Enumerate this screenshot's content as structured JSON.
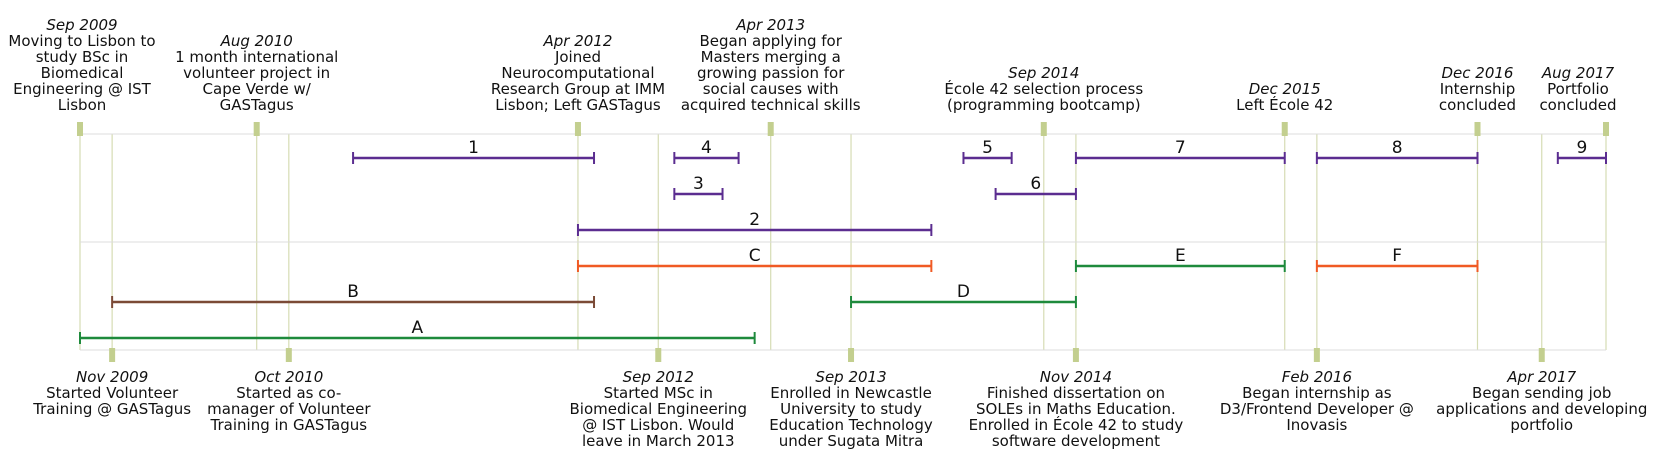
{
  "chart_data": {
    "type": "timeline",
    "axis_range": [
      "2009-09",
      "2017-08"
    ],
    "events_top": [
      {
        "date": "2009-09",
        "date_label": "Sep 2009",
        "text": [
          "Moving to Lisbon to",
          "study BSc in",
          "Biomedical",
          "Engineering @ IST",
          "Lisbon"
        ]
      },
      {
        "date": "2010-08",
        "date_label": "Aug 2010",
        "text": [
          "1 month international",
          "volunteer project in",
          "Cape Verde w/",
          "GASTagus"
        ]
      },
      {
        "date": "2012-04",
        "date_label": "Apr 2012",
        "text": [
          "Joined",
          "Neurocomputational",
          "Research Group at IMM",
          "Lisbon; Left GASTagus"
        ]
      },
      {
        "date": "2013-04",
        "date_label": "Apr 2013",
        "text": [
          "Began applying for",
          "Masters merging a",
          "growing passion for",
          "social causes with",
          "acquired technical skills"
        ]
      },
      {
        "date": "2014-09",
        "date_label": "Sep 2014",
        "text": [
          "École 42 selection process",
          "(programming bootcamp)"
        ]
      },
      {
        "date": "2015-12",
        "date_label": "Dec 2015",
        "text": [
          "Left École 42"
        ]
      },
      {
        "date": "2016-12",
        "date_label": "Dec 2016",
        "text": [
          "Internship",
          "concluded"
        ]
      },
      {
        "date": "2017-08",
        "date_label": "Aug 2017",
        "text": [
          "Portfolio",
          "concluded"
        ]
      }
    ],
    "events_bottom": [
      {
        "date": "2009-11",
        "date_label": "Nov 2009",
        "text": [
          "Started Volunteer",
          "Training @ GASTagus"
        ]
      },
      {
        "date": "2010-10",
        "date_label": "Oct 2010",
        "text": [
          "Started as co-",
          "manager of Volunteer",
          "Training in GASTagus"
        ]
      },
      {
        "date": "2012-09",
        "date_label": "Sep 2012",
        "text": [
          "Started MSc in",
          "Biomedical Engineering",
          "@ IST Lisbon. Would",
          "leave in March 2013"
        ]
      },
      {
        "date": "2013-09",
        "date_label": "Sep 2013",
        "text": [
          "Enrolled in Newcastle",
          "University to study",
          "Education Technology",
          "under Sugata Mitra"
        ]
      },
      {
        "date": "2014-11",
        "date_label": "Nov 2014",
        "text": [
          "Finished dissertation on",
          "SOLEs in Maths Education.",
          "Enrolled in École 42 to study",
          "software development"
        ]
      },
      {
        "date": "2016-02",
        "date_label": "Feb 2016",
        "text": [
          "Began internship as",
          "D3/Frontend Developer @",
          "Inovasis"
        ]
      },
      {
        "date": "2017-04",
        "date_label": "Apr 2017",
        "text": [
          "Began sending job",
          "applications and developing",
          "portfolio"
        ]
      }
    ],
    "spans_top": [
      {
        "label": "1",
        "start": "2011-02",
        "end": "2012-05",
        "row": 0,
        "color": "#5b2d90"
      },
      {
        "label": "4",
        "start": "2012-10",
        "end": "2013-02",
        "row": 0,
        "color": "#5b2d90"
      },
      {
        "label": "5",
        "start": "2014-04",
        "end": "2014-07",
        "row": 0,
        "color": "#5b2d90"
      },
      {
        "label": "7",
        "start": "2014-11",
        "end": "2015-12",
        "row": 0,
        "color": "#5b2d90"
      },
      {
        "label": "8",
        "start": "2016-02",
        "end": "2016-12",
        "row": 0,
        "color": "#5b2d90"
      },
      {
        "label": "9",
        "start": "2017-05",
        "end": "2017-08",
        "row": 0,
        "color": "#5b2d90"
      },
      {
        "label": "3",
        "start": "2012-10",
        "end": "2013-01",
        "row": 1,
        "color": "#5b2d90"
      },
      {
        "label": "6",
        "start": "2014-06",
        "end": "2014-11",
        "row": 1,
        "color": "#5b2d90"
      },
      {
        "label": "2",
        "start": "2012-04",
        "end": "2014-02",
        "row": 2,
        "color": "#5b2d90"
      }
    ],
    "spans_bottom": [
      {
        "label": "C",
        "start": "2012-04",
        "end": "2014-02",
        "row": 0,
        "color": "#f05a24"
      },
      {
        "label": "E",
        "start": "2014-11",
        "end": "2015-12",
        "row": 0,
        "color": "#1e8a3c"
      },
      {
        "label": "F",
        "start": "2016-02",
        "end": "2016-12",
        "row": 0,
        "color": "#f05a24"
      },
      {
        "label": "B",
        "start": "2009-11",
        "end": "2012-05",
        "row": 1,
        "color": "#7b4a36"
      },
      {
        "label": "D",
        "start": "2013-09",
        "end": "2014-11",
        "row": 1,
        "color": "#1e8a3c"
      },
      {
        "label": "A",
        "start": "2009-09",
        "end": "2013-03",
        "row": 2,
        "color": "#1e8a3c"
      }
    ],
    "colors": {
      "grid": "#d6dcb4",
      "marker": "#c3cf8f",
      "divider": "#dcdcdc"
    }
  }
}
